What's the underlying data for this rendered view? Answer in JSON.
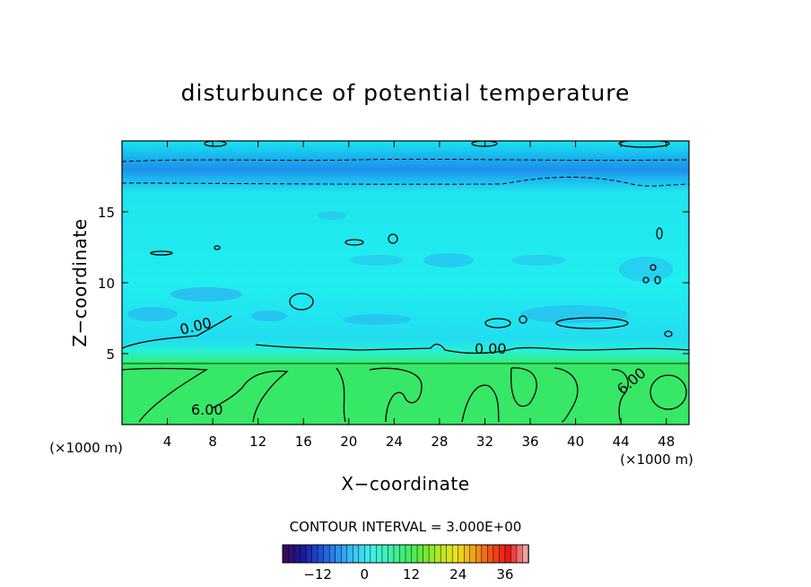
{
  "chart_data": {
    "type": "heatmap",
    "title": "disturbunce of potential temperature",
    "xlabel": "X−coordinate",
    "ylabel": "Z−coordinate",
    "x_unit": "(×1000 m)",
    "z_unit": "(×1000 m)",
    "xlim": [
      0,
      50
    ],
    "ylim": [
      0,
      20
    ],
    "x_ticks": [
      4,
      8,
      12,
      16,
      20,
      24,
      28,
      32,
      36,
      40,
      44,
      48
    ],
    "y_ticks": [
      5,
      10,
      15
    ],
    "contour_interval_label": "CONTOUR INTERVAL = 3.000E+00",
    "contour_labels": [
      {
        "text": "0.00",
        "x": 6.6,
        "z": 6.6
      },
      {
        "text": "0.00",
        "x": 32.5,
        "z": 5.0
      },
      {
        "text": "6.00",
        "x": 7.5,
        "z": 0.7
      },
      {
        "text": "6.00",
        "x": 45.2,
        "z": 2.8
      }
    ],
    "colorbar": {
      "range": [
        -21,
        42
      ],
      "ticks": [
        -12,
        0,
        12,
        24,
        36
      ],
      "colors": [
        "#3a0a5a",
        "#1a1a9a",
        "#1f4fd8",
        "#2a8ff0",
        "#3ac6f5",
        "#3ff0e8",
        "#3ff0b0",
        "#40ec70",
        "#66e838",
        "#b8e828",
        "#f0e020",
        "#f0a018",
        "#f05018",
        "#e81818",
        "#f0a0a0"
      ]
    },
    "fill_colors": {
      "low_layer": "#34e86a",
      "mid_layer": "#20f0e8",
      "upper_band": "#1ea0ee",
      "cool_patch": "#2ac8f2"
    }
  }
}
